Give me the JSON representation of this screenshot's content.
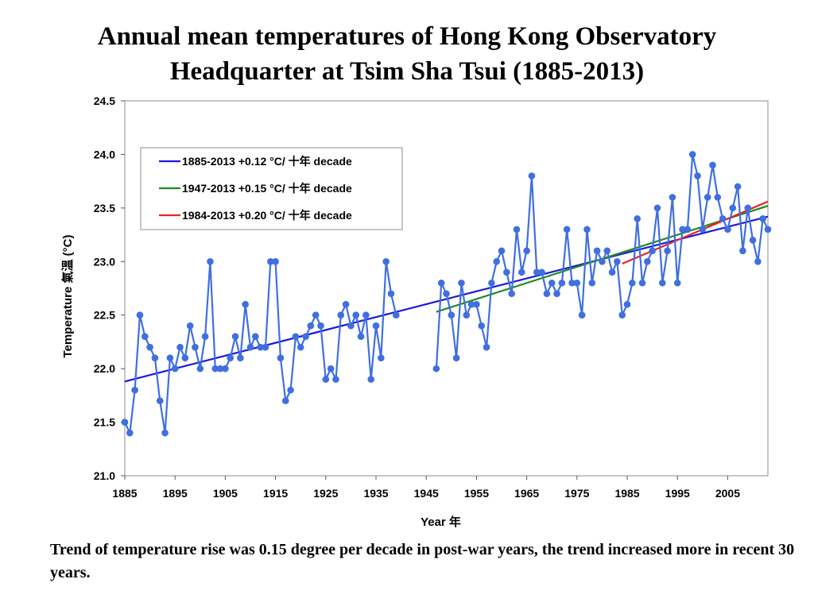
{
  "page": {
    "title_line1": "Annual mean temperatures of Hong Kong Observatory",
    "title_line2": "Headquarter at Tsim Sha Tsui (1885-2013)",
    "caption": "Trend of temperature rise was 0.15 degree per decade in post-war years, the trend increased more in recent 30 years."
  },
  "chart_data": {
    "type": "line",
    "xlabel": "Year 年",
    "ylabel": "Temperature 氣溫 (°C)",
    "xlim": [
      1885,
      2013
    ],
    "ylim": [
      21.0,
      24.5
    ],
    "xticks": [
      1885,
      1895,
      1905,
      1915,
      1925,
      1935,
      1945,
      1955,
      1965,
      1975,
      1985,
      1995,
      2005
    ],
    "yticks": [
      21.0,
      21.5,
      22.0,
      22.5,
      23.0,
      23.5,
      24.0,
      24.5
    ],
    "ytick_labels": [
      "21.0",
      "21.5",
      "22.0",
      "22.5",
      "23.0",
      "23.5",
      "24.0",
      "24.5"
    ],
    "grid": false,
    "legend_position": "top-left",
    "series": [
      {
        "color": "#3f6fe0",
        "segments": [
          {
            "x": [
              1885,
              1886,
              1887,
              1888,
              1889,
              1890,
              1891,
              1892,
              1893,
              1894,
              1895,
              1896,
              1897,
              1898,
              1899,
              1900,
              1901,
              1902,
              1903,
              1904,
              1905,
              1906,
              1907,
              1908,
              1909,
              1910,
              1911,
              1912,
              1913,
              1914,
              1915,
              1916,
              1917,
              1918,
              1919,
              1920,
              1921,
              1922,
              1923,
              1924,
              1925,
              1926,
              1927,
              1928,
              1929,
              1930,
              1931,
              1932,
              1933,
              1934,
              1935,
              1936,
              1937,
              1938,
              1939
            ],
            "y": [
              21.5,
              21.4,
              21.8,
              22.5,
              22.3,
              22.2,
              22.1,
              21.7,
              21.4,
              22.1,
              22.0,
              22.2,
              22.1,
              22.4,
              22.2,
              22.0,
              22.3,
              23.0,
              22.0,
              22.0,
              22.0,
              22.1,
              22.3,
              22.1,
              22.6,
              22.2,
              22.3,
              22.2,
              22.2,
              23.0,
              23.0,
              22.1,
              21.7,
              21.8,
              22.3,
              22.2,
              22.3,
              22.4,
              22.5,
              22.4,
              21.9,
              22.0,
              21.9,
              22.5,
              22.6,
              22.4,
              22.5,
              22.3,
              22.5,
              21.9,
              22.4,
              22.1,
              23.0,
              22.7,
              22.5
            ]
          },
          {
            "x": [
              1947,
              1948,
              1949,
              1950,
              1951,
              1952,
              1953,
              1954,
              1955,
              1956,
              1957,
              1958,
              1959,
              1960,
              1961,
              1962,
              1963,
              1964,
              1965,
              1966,
              1967,
              1968,
              1969,
              1970,
              1971,
              1972,
              1973,
              1974,
              1975,
              1976,
              1977,
              1978,
              1979,
              1980,
              1981,
              1982,
              1983,
              1984,
              1985,
              1986,
              1987,
              1988,
              1989,
              1990,
              1991,
              1992,
              1993,
              1994,
              1995,
              1996,
              1997,
              1998,
              1999,
              2000,
              2001,
              2002,
              2003,
              2004,
              2005,
              2006,
              2007,
              2008,
              2009,
              2010,
              2011,
              2012,
              2013
            ],
            "y": [
              22.0,
              22.8,
              22.7,
              22.5,
              22.1,
              22.8,
              22.5,
              22.6,
              22.6,
              22.4,
              22.2,
              22.8,
              23.0,
              23.1,
              22.9,
              22.7,
              23.3,
              22.9,
              23.1,
              23.8,
              22.9,
              22.9,
              22.7,
              22.8,
              22.7,
              22.8,
              23.3,
              22.8,
              22.8,
              22.5,
              23.3,
              22.8,
              23.1,
              23.0,
              23.1,
              22.9,
              23.0,
              22.5,
              22.6,
              22.8,
              23.4,
              22.8,
              23.0,
              23.1,
              23.5,
              22.8,
              23.1,
              23.6,
              22.8,
              23.3,
              23.3,
              24.0,
              23.8,
              23.3,
              23.6,
              23.9,
              23.6,
              23.4,
              23.3,
              23.5,
              23.7,
              23.1,
              23.5,
              23.2,
              23.0,
              23.4,
              23.3
            ]
          }
        ]
      }
    ],
    "trend_lines": [
      {
        "label": "1885-2013 +0.12 °C/ 十年 decade",
        "color": "#1a1adb",
        "x": [
          1885,
          2013
        ],
        "y": [
          21.88,
          23.42
        ]
      },
      {
        "label": "1947-2013 +0.15 °C/ 十年 decade",
        "color": "#1f8a1f",
        "x": [
          1947,
          2013
        ],
        "y": [
          22.53,
          23.52
        ]
      },
      {
        "label": "1984-2013 +0.20 °C/ 十年 decade",
        "color": "#ee2020",
        "x": [
          1984,
          2013
        ],
        "y": [
          22.98,
          23.56
        ]
      }
    ]
  }
}
